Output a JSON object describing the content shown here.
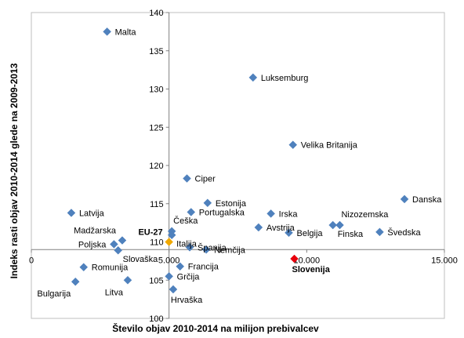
{
  "chart_data": {
    "type": "scatter",
    "title": "",
    "xlabel": "Število objav 2010-2014 na milijon prebivalcev",
    "ylabel": "Indeks rasti objav 2010-2014 glede na 2009-2013",
    "xlim": [
      0,
      15000
    ],
    "ylim": [
      100,
      140
    ],
    "x_ticks": [
      0,
      5000,
      10000,
      15000
    ],
    "x_tick_labels": [
      "0",
      "5.000",
      "10.000",
      "15.000"
    ],
    "y_ticks": [
      100,
      105,
      110,
      115,
      120,
      125,
      130,
      135,
      140
    ],
    "y_tick_labels": [
      "100",
      "105",
      "110",
      "115",
      "120",
      "125",
      "130",
      "135",
      "140"
    ],
    "y_axis_crosses_x_at": 5000,
    "x_axis_crosses_y_at": 109,
    "grid": false,
    "legend": "none",
    "colors": {
      "default": "#4f81bd",
      "eu27": "#f0a800",
      "slovenia": "#e8000d"
    },
    "points": [
      {
        "label": "Malta",
        "x": 2750,
        "y": 137.5,
        "color": "default",
        "label_pos": "right"
      },
      {
        "label": "Luksemburg",
        "x": 8050,
        "y": 131.5,
        "color": "default",
        "label_pos": "right"
      },
      {
        "label": "Velika Britanija",
        "x": 9500,
        "y": 122.7,
        "color": "default",
        "label_pos": "right"
      },
      {
        "label": "Ciper",
        "x": 5650,
        "y": 118.3,
        "color": "default",
        "label_pos": "right"
      },
      {
        "label": "Danska",
        "x": 13550,
        "y": 115.6,
        "color": "default",
        "label_pos": "right"
      },
      {
        "label": "Estonija",
        "x": 6400,
        "y": 115.1,
        "color": "default",
        "label_pos": "right"
      },
      {
        "label": "Latvija",
        "x": 1450,
        "y": 113.8,
        "color": "default",
        "label_pos": "right"
      },
      {
        "label": "Portugalska",
        "x": 5800,
        "y": 113.9,
        "color": "default",
        "label_pos": "right"
      },
      {
        "label": "Irska",
        "x": 8700,
        "y": 113.7,
        "color": "default",
        "label_pos": "right"
      },
      {
        "label": "Češka",
        "x": 5100,
        "y": 111.4,
        "color": "default",
        "label_pos": "above"
      },
      {
        "label": "Nizozemska",
        "x": 11200,
        "y": 112.2,
        "color": "default",
        "label_pos": "above"
      },
      {
        "label": "Avstrija",
        "x": 8250,
        "y": 111.9,
        "color": "default",
        "label_pos": "right"
      },
      {
        "label": "Belgija",
        "x": 9350,
        "y": 111.2,
        "color": "default",
        "label_pos": "right"
      },
      {
        "label": "Finska",
        "x": 10950,
        "y": 112.2,
        "color": "default",
        "label_pos": "below-right"
      },
      {
        "label": "Švedska",
        "x": 12650,
        "y": 111.3,
        "color": "default",
        "label_pos": "right"
      },
      {
        "label": "EU-27",
        "x": 5000,
        "y": 110.0,
        "color": "eu27",
        "label_pos": "above-left"
      },
      {
        "label": "Madžarska",
        "x": 3300,
        "y": 110.2,
        "color": "default",
        "label_pos": "above-left"
      },
      {
        "label": "Poljska",
        "x": 3000,
        "y": 109.7,
        "color": "default",
        "label_pos": "left"
      },
      {
        "label": "Slovaška",
        "x": 3150,
        "y": 108.9,
        "color": "default",
        "label_pos": "below-right"
      },
      {
        "label": "Italija",
        "x": 5100,
        "y": 110.9,
        "color": "default",
        "label_pos": "below-right"
      },
      {
        "label": "Španija",
        "x": 5750,
        "y": 109.3,
        "color": "default",
        "label_pos": "right"
      },
      {
        "label": "Nemčija",
        "x": 6350,
        "y": 109.0,
        "color": "default",
        "label_pos": "right"
      },
      {
        "label": "Francija",
        "x": 5400,
        "y": 106.8,
        "color": "default",
        "label_pos": "right"
      },
      {
        "label": "Grčija",
        "x": 5000,
        "y": 105.5,
        "color": "default",
        "label_pos": "right"
      },
      {
        "label": "Slovenija",
        "x": 9550,
        "y": 107.8,
        "color": "slovenia",
        "label_pos": "below"
      },
      {
        "label": "Romunija",
        "x": 1900,
        "y": 106.7,
        "color": "default",
        "label_pos": "right"
      },
      {
        "label": "Bulgarija",
        "x": 1600,
        "y": 104.8,
        "color": "default",
        "label_pos": "below-left"
      },
      {
        "label": "Litva",
        "x": 3500,
        "y": 105.0,
        "color": "default",
        "label_pos": "below-left"
      },
      {
        "label": "Hrvaška",
        "x": 5150,
        "y": 103.8,
        "color": "default",
        "label_pos": "below"
      }
    ]
  }
}
